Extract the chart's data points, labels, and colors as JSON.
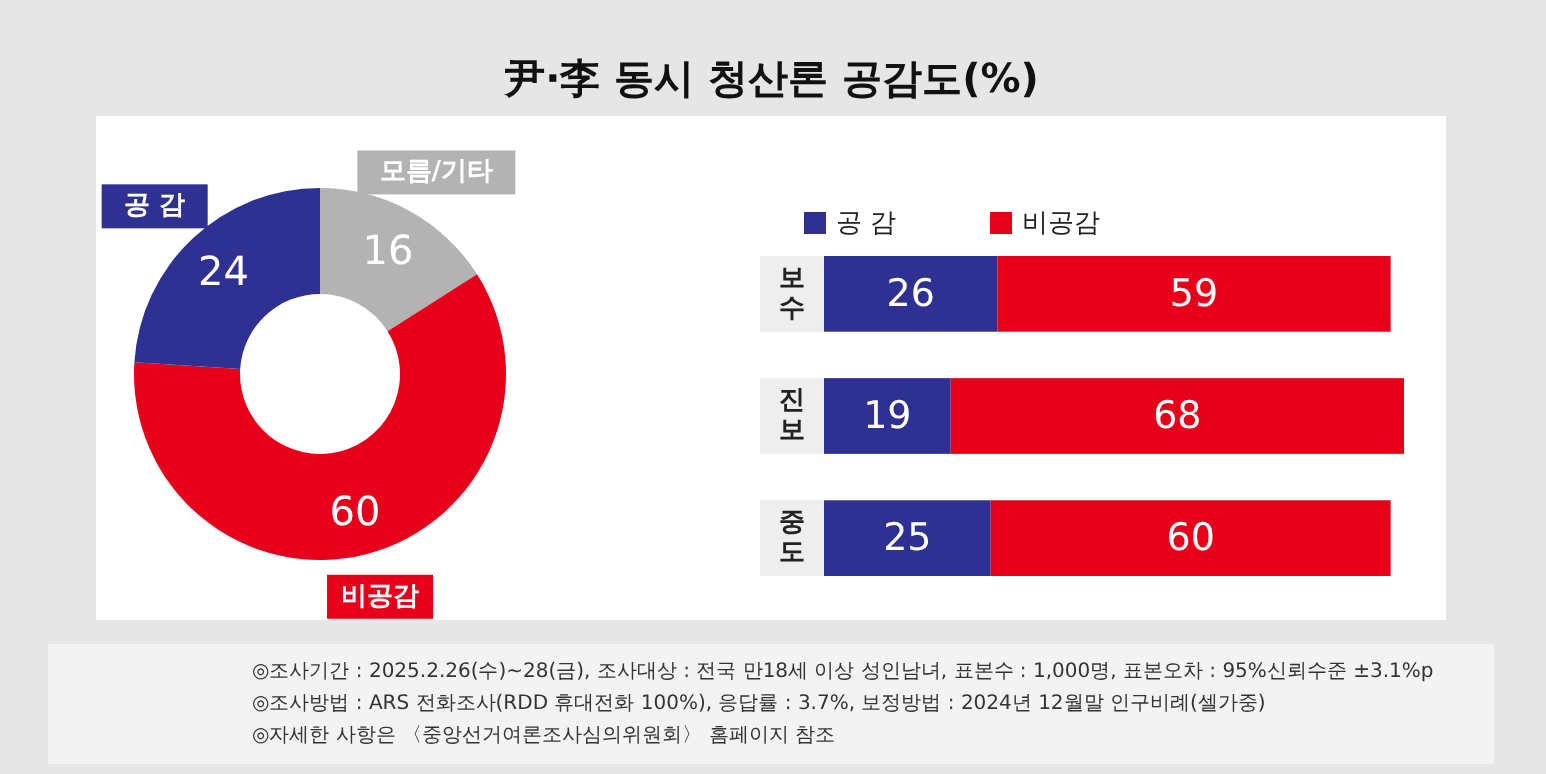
{
  "chart_data": [
    {
      "type": "donut",
      "title": "尹·李 동시 청산론 공감도(%)",
      "categories": [
        "모름/기타",
        "비공감",
        "공 감"
      ],
      "values": [
        16,
        60,
        24
      ],
      "colors": [
        "#b3b3b3",
        "#e60019",
        "#2e3192"
      ],
      "data_labels": true,
      "annotations": [
        "◎조사기간 : 2025.2.26(수)~28(금), 조사대상 : 전국 만18세 이상 성인남녀, 표본수 : 1,000명, 표본오차 : 95%신뢰수준 ±3.1%p",
        "◎조사방법 : ARS 전화조사(RDD 휴대전화 100%), 응답률 : 3.7%, 보정방법 : 2024년 12월말 인구비례(셀가중)",
        "◎자세한 사항은 〈중앙선거여론조사심의위원회〉 홈페이지 참조"
      ]
    },
    {
      "type": "bar",
      "orientation": "horizontal",
      "stacked": true,
      "categories": [
        "보수",
        "진보",
        "중도"
      ],
      "series": [
        {
          "name": "공 감",
          "color": "#2e3192",
          "values": [
            26,
            19,
            25
          ]
        },
        {
          "name": "비공감",
          "color": "#e60019",
          "values": [
            59,
            68,
            60
          ]
        }
      ],
      "legend": "top",
      "data_labels": true
    }
  ]
}
